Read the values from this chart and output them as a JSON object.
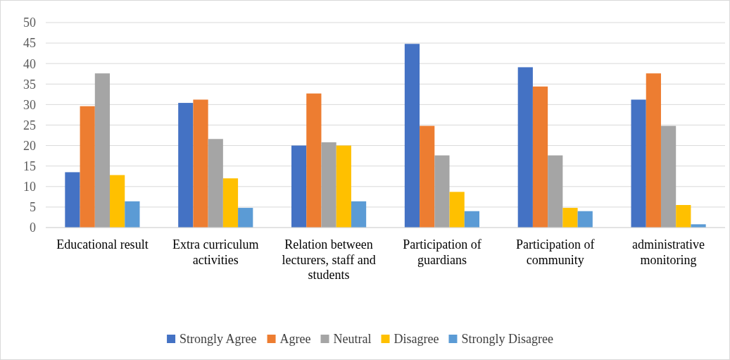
{
  "chart_data": {
    "type": "bar",
    "categories": [
      "Educational result",
      "Extra curriculum activities",
      "Relation between lecturers, staff and students",
      "Participation of guardians",
      "Participation of community",
      "administrative monitoring"
    ],
    "series": [
      {
        "name": "Strongly Agree",
        "color": "#4472c4",
        "values": [
          13.5,
          30.4,
          20.0,
          44.8,
          39.1,
          31.2
        ]
      },
      {
        "name": "Agree",
        "color": "#ed7d31",
        "values": [
          29.6,
          31.2,
          32.7,
          24.8,
          34.4,
          37.6
        ]
      },
      {
        "name": "Neutral",
        "color": "#a5a5a5",
        "values": [
          37.6,
          21.6,
          20.8,
          17.6,
          17.6,
          24.8
        ]
      },
      {
        "name": "Disagree",
        "color": "#ffc000",
        "values": [
          12.8,
          12.0,
          20.0,
          8.7,
          4.8,
          5.5
        ]
      },
      {
        "name": "Strongly Disagree",
        "color": "#5b9bd5",
        "values": [
          6.4,
          4.8,
          6.4,
          4.0,
          4.0,
          0.8
        ]
      }
    ],
    "ylim": [
      0,
      50
    ],
    "yticks": [
      0,
      5,
      10,
      15,
      20,
      25,
      30,
      35,
      40,
      45,
      50
    ],
    "grid": "y",
    "legend": "bottom"
  }
}
